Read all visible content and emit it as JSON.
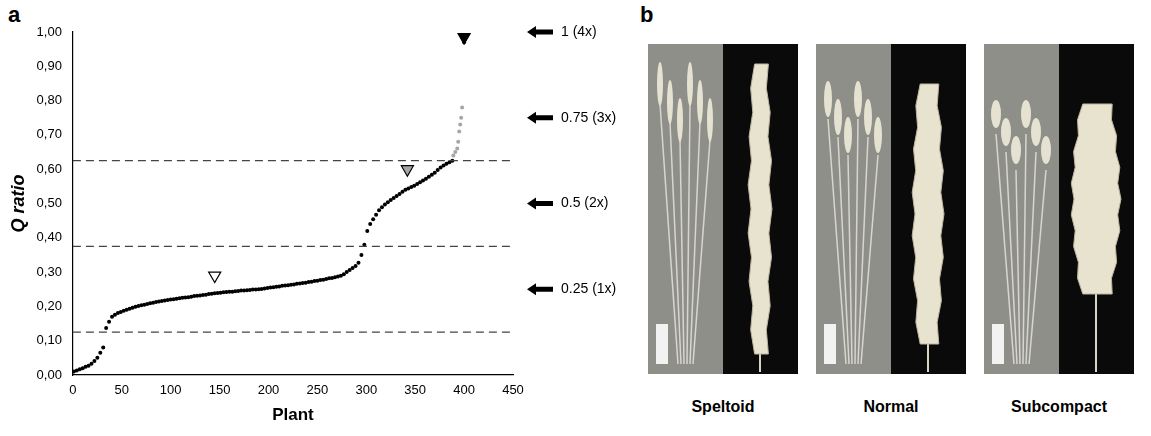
{
  "chart_data": {
    "type": "scatter",
    "panel_label": "a",
    "xlabel": "Plant",
    "ylabel": "Q ratio",
    "grid": false,
    "xlim": [
      0,
      450
    ],
    "xticks": [
      0,
      50,
      100,
      150,
      200,
      250,
      300,
      350,
      400,
      450
    ],
    "ylim": [
      0,
      1
    ],
    "yticks": [
      {
        "value": 0,
        "label": "0,00"
      },
      {
        "value": 0.1,
        "label": "0,10"
      },
      {
        "value": 0.2,
        "label": "0,20"
      },
      {
        "value": 0.3,
        "label": "0,30"
      },
      {
        "value": 0.4,
        "label": "0,40"
      },
      {
        "value": 0.5,
        "label": "0,50"
      },
      {
        "value": 0.6,
        "label": "0,60"
      },
      {
        "value": 0.7,
        "label": "0,70"
      },
      {
        "value": 0.8,
        "label": "0,80"
      },
      {
        "value": 0.9,
        "label": "0,90"
      },
      {
        "value": 1,
        "label": "1,00"
      }
    ],
    "series": [
      {
        "color": "#000000",
        "marker": "circle",
        "x": [
          1,
          4,
          7,
          10,
          13,
          16,
          19,
          22,
          25,
          28,
          31,
          34,
          37,
          40,
          43,
          46,
          49,
          52,
          55,
          58,
          61,
          64,
          67,
          70,
          73,
          76,
          79,
          82,
          85,
          88,
          91,
          94,
          97,
          100,
          103,
          106,
          109,
          112,
          115,
          118,
          121,
          124,
          127,
          130,
          133,
          136,
          139,
          142,
          145,
          148,
          151,
          154,
          157,
          160,
          163,
          166,
          169,
          172,
          175,
          178,
          181,
          184,
          187,
          190,
          193,
          196,
          199,
          202,
          205,
          208,
          211,
          214,
          217,
          220,
          223,
          226,
          229,
          232,
          235,
          238,
          241,
          244,
          247,
          250,
          253,
          256,
          259,
          262,
          265,
          268,
          271,
          274,
          277,
          280,
          283,
          286,
          289,
          292,
          295,
          298,
          301,
          304,
          307,
          310,
          313,
          316,
          319,
          322,
          325,
          328,
          331,
          334,
          337,
          340,
          343,
          346,
          349,
          352,
          355,
          358,
          361,
          364,
          367,
          370,
          373,
          376,
          379,
          382,
          385,
          388,
          400
        ],
        "values": [
          0.01,
          0.013,
          0.017,
          0.02,
          0.024,
          0.027,
          0.033,
          0.041,
          0.05,
          0.065,
          0.08,
          0.137,
          0.155,
          0.17,
          0.176,
          0.181,
          0.184,
          0.187,
          0.19,
          0.193,
          0.196,
          0.199,
          0.201,
          0.203,
          0.205,
          0.207,
          0.209,
          0.211,
          0.213,
          0.214,
          0.216,
          0.217,
          0.219,
          0.22,
          0.221,
          0.222,
          0.224,
          0.225,
          0.226,
          0.227,
          0.228,
          0.23,
          0.231,
          0.232,
          0.233,
          0.234,
          0.236,
          0.237,
          0.238,
          0.239,
          0.24,
          0.241,
          0.242,
          0.243,
          0.243,
          0.244,
          0.245,
          0.246,
          0.246,
          0.247,
          0.248,
          0.249,
          0.249,
          0.25,
          0.251,
          0.252,
          0.254,
          0.255,
          0.256,
          0.257,
          0.258,
          0.26,
          0.261,
          0.262,
          0.263,
          0.264,
          0.266,
          0.267,
          0.268,
          0.269,
          0.271,
          0.272,
          0.274,
          0.275,
          0.277,
          0.278,
          0.28,
          0.282,
          0.283,
          0.285,
          0.287,
          0.289,
          0.294,
          0.3,
          0.306,
          0.312,
          0.318,
          0.327,
          0.35,
          0.38,
          0.42,
          0.44,
          0.454,
          0.467,
          0.48,
          0.489,
          0.497,
          0.504,
          0.51,
          0.516,
          0.522,
          0.528,
          0.534,
          0.54,
          0.544,
          0.548,
          0.552,
          0.557,
          0.562,
          0.567,
          0.572,
          0.578,
          0.584,
          0.59,
          0.598,
          0.605,
          0.611,
          0.616,
          0.62,
          0.625,
          0.97
        ]
      },
      {
        "color": "#a6a6a6",
        "marker": "circle",
        "x": [
          389,
          391,
          393,
          394,
          395,
          396,
          397,
          398
        ],
        "values": [
          0.64,
          0.65,
          0.66,
          0.68,
          0.71,
          0.73,
          0.75,
          0.78
        ]
      }
    ],
    "markers": {
      "marker": "triangle",
      "x": [
        145,
        342,
        400
      ],
      "values": [
        0.29,
        0.6,
        0.985
      ],
      "colors": [
        "#ffffff",
        "#a6a6a6",
        "#000000"
      ]
    },
    "reference_lines": {
      "values": [
        0.125,
        0.375,
        0.625
      ],
      "line_style": "dashed"
    },
    "annotations": [
      {
        "text": "1 (4x)",
        "value": 1
      },
      {
        "text": "0.75 (3x)",
        "value": 0.75
      },
      {
        "text": "0.5 (2x)",
        "value": 0.5
      },
      {
        "text": "0.25 (1x)",
        "value": 0.25
      }
    ]
  },
  "panel_b": {
    "label": "b",
    "captions": [
      "Speltoid",
      "Normal",
      "Subcompact"
    ]
  }
}
